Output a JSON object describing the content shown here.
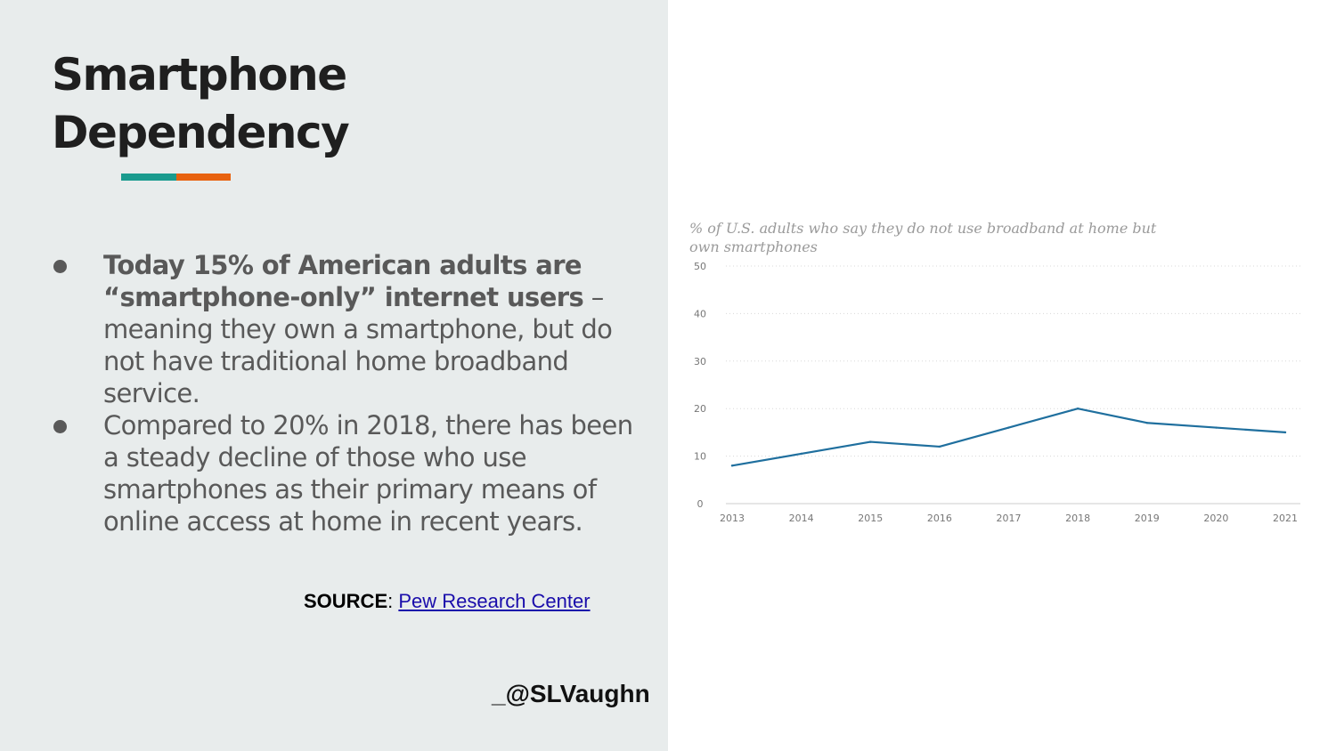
{
  "slide": {
    "title_line1": "Smartphone",
    "title_line2": "Dependency",
    "accent_colors": [
      "#1a9b8e",
      "#e8620f"
    ],
    "bullets": [
      {
        "bold": "Today 15% of American adults are “smartphone-only” internet users",
        "text": " – meaning they own a smartphone, but do not have traditional home broadband service."
      },
      {
        "bold": "",
        "text": "Compared to 20% in 2018, there has been a steady decline of those who use smartphones as their primary means of online access at home in recent years."
      }
    ],
    "source_label": "SOURCE",
    "source_sep": ": ",
    "source_link": "Pew Research Center",
    "handle": "_@SLVaughn"
  },
  "chart_data": {
    "type": "line",
    "subtitle": "% of U.S. adults who say they do not use broadband at home but own smartphones",
    "x": [
      2013,
      2014,
      2015,
      2016,
      2017,
      2018,
      2019,
      2020,
      2021
    ],
    "x_ticks": [
      "2013",
      "2014",
      "2015",
      "2016",
      "2017",
      "2018",
      "2019",
      "2020",
      "2021"
    ],
    "series": [
      {
        "values": [
          8,
          10.5,
          13,
          12,
          16,
          20,
          17,
          16,
          15
        ]
      }
    ],
    "y_ticks": [
      0,
      10,
      20,
      30,
      40,
      50
    ],
    "ylim": [
      0,
      50
    ],
    "grid": "horizontal dotted",
    "line_color": "#1f6f9e"
  }
}
